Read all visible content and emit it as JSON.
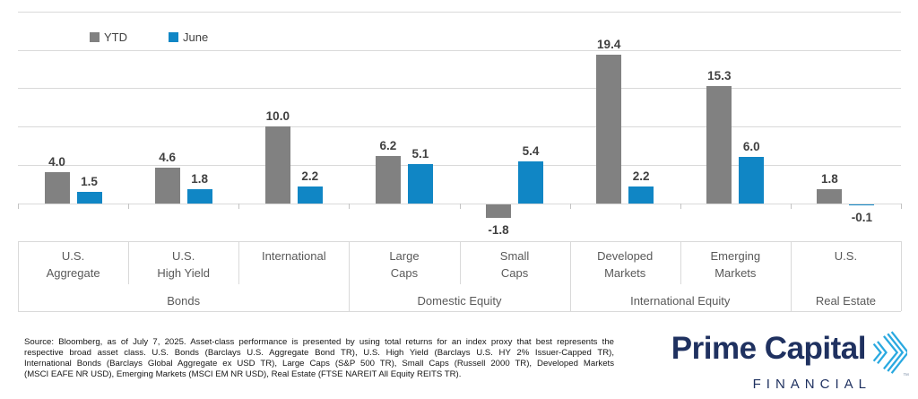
{
  "legend": {
    "items": [
      {
        "label": "YTD",
        "color": "#818181"
      },
      {
        "label": "June",
        "color": "#1086c5"
      }
    ]
  },
  "chart_data": {
    "type": "bar",
    "categories": [
      "U.S. Aggregate",
      "U.S. High Yield",
      "International",
      "Large Caps",
      "Small Caps",
      "Developed Markets",
      "Emerging Markets",
      "U.S."
    ],
    "category_label_lines": [
      [
        "U.S.",
        "Aggregate"
      ],
      [
        "U.S.",
        "High Yield"
      ],
      [
        "International"
      ],
      [
        "Large",
        "Caps"
      ],
      [
        "Small",
        "Caps"
      ],
      [
        "Developed",
        "Markets"
      ],
      [
        "Emerging",
        "Markets"
      ],
      [
        "U.S."
      ]
    ],
    "series": [
      {
        "name": "YTD",
        "color": "#818181",
        "values": [
          4.0,
          4.6,
          10.0,
          6.2,
          -1.8,
          19.4,
          15.3,
          1.8
        ]
      },
      {
        "name": "June",
        "color": "#1086c5",
        "values": [
          1.5,
          1.8,
          2.2,
          5.1,
          5.4,
          2.2,
          6.0,
          -0.1
        ]
      }
    ],
    "groups": [
      {
        "label": "Bonds",
        "span": 3
      },
      {
        "label": "Domestic Equity",
        "span": 2
      },
      {
        "label": "International Equity",
        "span": 2
      },
      {
        "label": "Real Estate",
        "span": 1
      }
    ],
    "ylim": [
      -5,
      25
    ],
    "gridline_step": 5,
    "grid": true,
    "value_labels": true,
    "legend_position": "top-left",
    "title": "",
    "xlabel": "",
    "ylabel": ""
  },
  "footer": {
    "source_lines": [
      "Source: Bloomberg, as of July 7, 2025. Asset-class performance is presented by using total returns for an index proxy that best represents the",
      "respective broad asset class. U.S. Bonds (Barclays U.S. Aggregate Bond TR), U.S. High Yield (Barclays U.S. HY 2% Issuer-Capped TR),",
      "International Bonds (Barclays Global Aggregate ex USD TR), Large Caps (S&P 500 TR), Small Caps (Russell 2000 TR), Developed Markets",
      "(MSCI EAFE NR USD), Emerging Markets (MSCI EM NR USD), Real Estate (FTSE NAREIT All Equity REITS TR)."
    ]
  },
  "logo": {
    "name": "Prime Capital",
    "sub": "FINANCIAL",
    "tm": "™",
    "navy": "#1f3160",
    "light_blue": "#2aa9e0"
  }
}
